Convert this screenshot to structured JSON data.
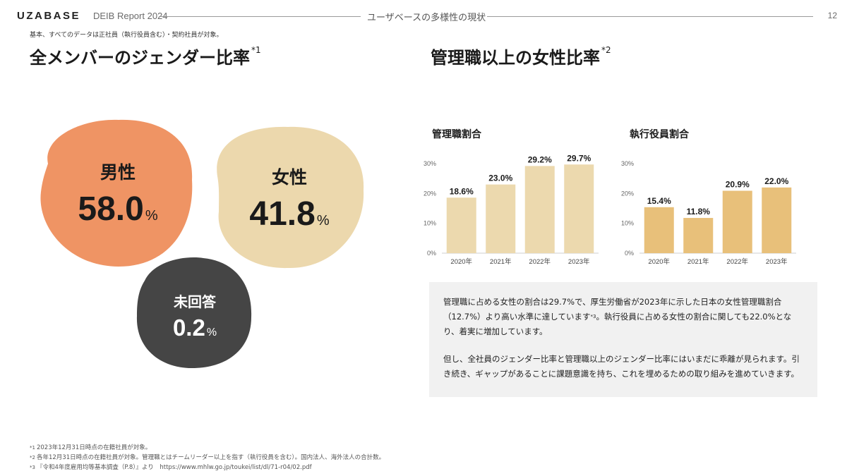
{
  "header": {
    "logo": "UZABASE",
    "report_title": "DEIB Report 2024",
    "section_title": "ユーザベースの多様性の現状",
    "page_number": "12"
  },
  "top_note": "基本、すべてのデータは正社員（執行役員含む）・契約社員が対象。",
  "left": {
    "title": "全メンバーのジェンダー比率",
    "title_sup": "*1",
    "blobs": [
      {
        "label": "男性",
        "value": "58.0",
        "unit": "%",
        "color": "#ef9464"
      },
      {
        "label": "女性",
        "value": "41.8",
        "unit": "%",
        "color": "#ecd8ad"
      },
      {
        "label": "未回答",
        "value": "0.2",
        "unit": "%",
        "color": "#454545"
      }
    ]
  },
  "right": {
    "title": "管理職以上の女性比率",
    "title_sup": "*2"
  },
  "chart_data": [
    {
      "type": "bar",
      "title": "管理職割合",
      "categories": [
        "2020年",
        "2021年",
        "2022年",
        "2023年"
      ],
      "values": [
        18.6,
        23.0,
        29.2,
        29.7
      ],
      "value_labels": [
        "18.6%",
        "23.0%",
        "29.2%",
        "29.7%"
      ],
      "ylim": [
        0,
        30
      ],
      "yticks": [
        "0%",
        "10%",
        "20%",
        "30%"
      ],
      "xlabel": "",
      "ylabel": "",
      "bar_color": "#ecd9ae"
    },
    {
      "type": "bar",
      "title": "執行役員割合",
      "categories": [
        "2020年",
        "2021年",
        "2022年",
        "2023年"
      ],
      "values": [
        15.4,
        11.8,
        20.9,
        22.0
      ],
      "value_labels": [
        "15.4%",
        "11.8%",
        "20.9%",
        "22.0%"
      ],
      "ylim": [
        0,
        30
      ],
      "yticks": [
        "0%",
        "10%",
        "20%",
        "30%"
      ],
      "xlabel": "",
      "ylabel": "",
      "bar_color": "#e8c07a"
    }
  ],
  "info": {
    "p1_a": "管理職に占める女性の割合は29.7%で、厚生労働省が2023年に示した日本の女性管理職割合（12.7%）より高い水準に達しています",
    "p1_sup": "*3",
    "p1_b": "。執行役員に占める女性の割合に関しても22.0%となり、着実に増加しています。",
    "p2": "但し、全社員のジェンダー比率と管理職以上のジェンダー比率にはいまだに乖離が見られます。引き続き、ギャップがあることに課題意識を持ち、これを埋めるための取り組みを進めていきます。"
  },
  "footnotes": [
    {
      "mark": "*1",
      "text": "2023年12月31日時点の在籍社員が対象。"
    },
    {
      "mark": "*2",
      "text": "各年12月31日時点の在籍社員が対象。管理職とはチームリーダー以上を指す（執行役員を含む）。国内法人、海外法人の合計数。"
    },
    {
      "mark": "*3",
      "text": "『令和4年度雇用均等基本調査（P.8）』より　https://www.mhlw.go.jp/toukei/list/dl/71-r04/02.pdf"
    }
  ]
}
